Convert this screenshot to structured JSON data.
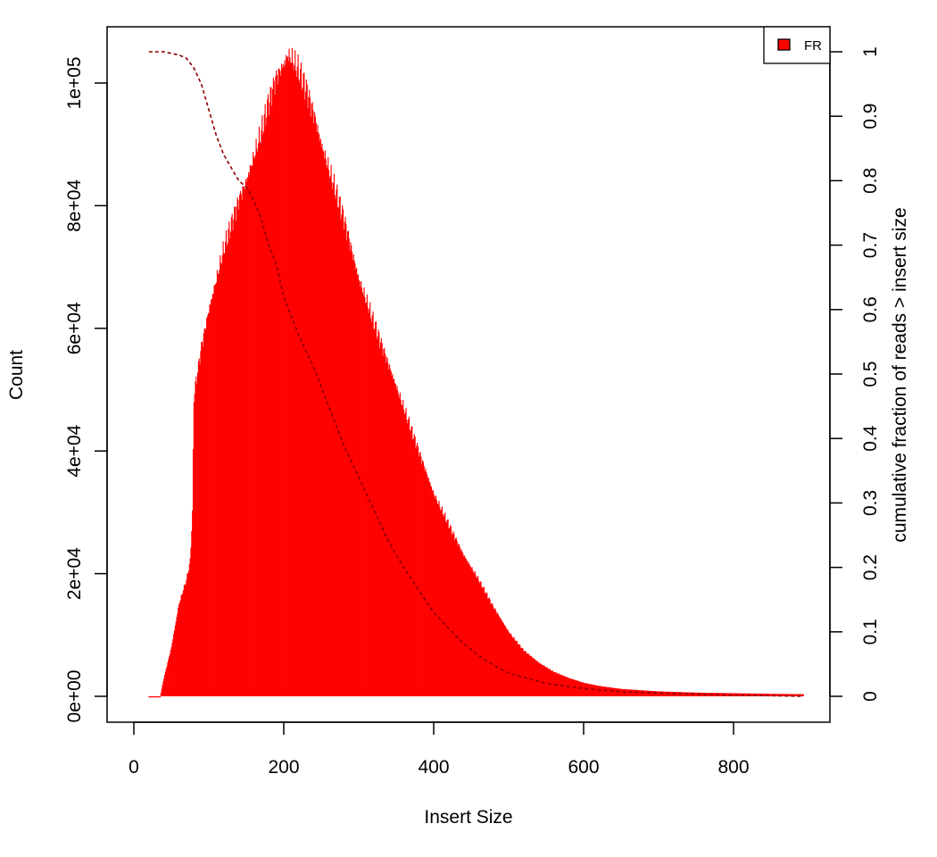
{
  "chart_data": {
    "type": "histogram",
    "xlabel": "Insert Size",
    "ylabel": "Count",
    "y2label": "cumulative fraction of reads > insert size",
    "xlim": [
      0,
      900
    ],
    "ylim": [
      0,
      105000
    ],
    "y2lim": [
      0,
      1
    ],
    "x_ticks": [
      0,
      200,
      400,
      600,
      800
    ],
    "x_tick_labels": [
      "0",
      "200",
      "400",
      "600",
      "800"
    ],
    "y_ticks": [
      0,
      20000,
      40000,
      60000,
      80000,
      100000
    ],
    "y_tick_labels": [
      "0e+00",
      "2e+04",
      "4e+04",
      "6e+04",
      "8e+04",
      "1e+05"
    ],
    "y2_ticks": [
      0,
      0.1,
      0.2,
      0.3,
      0.4,
      0.5,
      0.6,
      0.7,
      0.8,
      0.9,
      1
    ],
    "y2_tick_labels": [
      "0",
      "0.1",
      "0.2",
      "0.3",
      "0.4",
      "0.5",
      "0.6",
      "0.7",
      "0.8",
      "0.9",
      "1"
    ],
    "legend": {
      "position": "top-right",
      "entries": [
        {
          "label": "FR",
          "color": "#ff0000"
        }
      ]
    },
    "histogram_series": {
      "name": "FR",
      "color": "#ff0000",
      "x_range": [
        20,
        893
      ],
      "profile_points": [
        [
          20,
          0
        ],
        [
          30,
          0
        ],
        [
          35,
          0
        ],
        [
          40,
          3000
        ],
        [
          50,
          8000
        ],
        [
          60,
          15000
        ],
        [
          70,
          19000
        ],
        [
          75,
          22000
        ],
        [
          78,
          30000
        ],
        [
          80,
          49000
        ],
        [
          85,
          53000
        ],
        [
          90,
          57000
        ],
        [
          100,
          63000
        ],
        [
          110,
          68000
        ],
        [
          120,
          73000
        ],
        [
          130,
          77000
        ],
        [
          140,
          81000
        ],
        [
          150,
          84000
        ],
        [
          160,
          88000
        ],
        [
          170,
          92000
        ],
        [
          180,
          97000
        ],
        [
          190,
          101000
        ],
        [
          200,
          103000
        ],
        [
          205,
          104500
        ],
        [
          210,
          104000
        ],
        [
          220,
          102000
        ],
        [
          230,
          99000
        ],
        [
          240,
          95000
        ],
        [
          250,
          90000
        ],
        [
          260,
          86000
        ],
        [
          270,
          82000
        ],
        [
          280,
          78000
        ],
        [
          290,
          73000
        ],
        [
          300,
          68000
        ],
        [
          320,
          61000
        ],
        [
          340,
          54000
        ],
        [
          360,
          47000
        ],
        [
          380,
          40000
        ],
        [
          400,
          33000
        ],
        [
          420,
          28000
        ],
        [
          440,
          23000
        ],
        [
          460,
          19000
        ],
        [
          480,
          14500
        ],
        [
          500,
          10500
        ],
        [
          520,
          7500
        ],
        [
          540,
          5500
        ],
        [
          560,
          4000
        ],
        [
          580,
          3000
        ],
        [
          600,
          2200
        ],
        [
          620,
          1700
        ],
        [
          650,
          1200
        ],
        [
          700,
          800
        ],
        [
          750,
          600
        ],
        [
          800,
          500
        ],
        [
          850,
          400
        ],
        [
          893,
          350
        ]
      ]
    },
    "cumulative_series": {
      "name": "",
      "color": "#8b0000",
      "style": "dashed",
      "points": [
        [
          20,
          1.0
        ],
        [
          40,
          1.0
        ],
        [
          60,
          0.995
        ],
        [
          70,
          0.99
        ],
        [
          80,
          0.975
        ],
        [
          90,
          0.95
        ],
        [
          100,
          0.91
        ],
        [
          110,
          0.87
        ],
        [
          120,
          0.84
        ],
        [
          130,
          0.82
        ],
        [
          140,
          0.8
        ],
        [
          150,
          0.79
        ],
        [
          160,
          0.77
        ],
        [
          170,
          0.74
        ],
        [
          180,
          0.7
        ],
        [
          190,
          0.67
        ],
        [
          200,
          0.62
        ],
        [
          220,
          0.56
        ],
        [
          240,
          0.51
        ],
        [
          260,
          0.45
        ],
        [
          280,
          0.39
        ],
        [
          300,
          0.34
        ],
        [
          320,
          0.29
        ],
        [
          340,
          0.24
        ],
        [
          360,
          0.2
        ],
        [
          380,
          0.165
        ],
        [
          400,
          0.13
        ],
        [
          420,
          0.105
        ],
        [
          440,
          0.082
        ],
        [
          460,
          0.063
        ],
        [
          480,
          0.048
        ],
        [
          500,
          0.036
        ],
        [
          550,
          0.02
        ],
        [
          600,
          0.012
        ],
        [
          650,
          0.007
        ],
        [
          700,
          0.005
        ],
        [
          800,
          0.002
        ],
        [
          893,
          0.0
        ]
      ]
    },
    "grid": false
  },
  "colors": {
    "fill": "#ff0000",
    "cumulative": "#8b0000",
    "axis": "#000000"
  }
}
